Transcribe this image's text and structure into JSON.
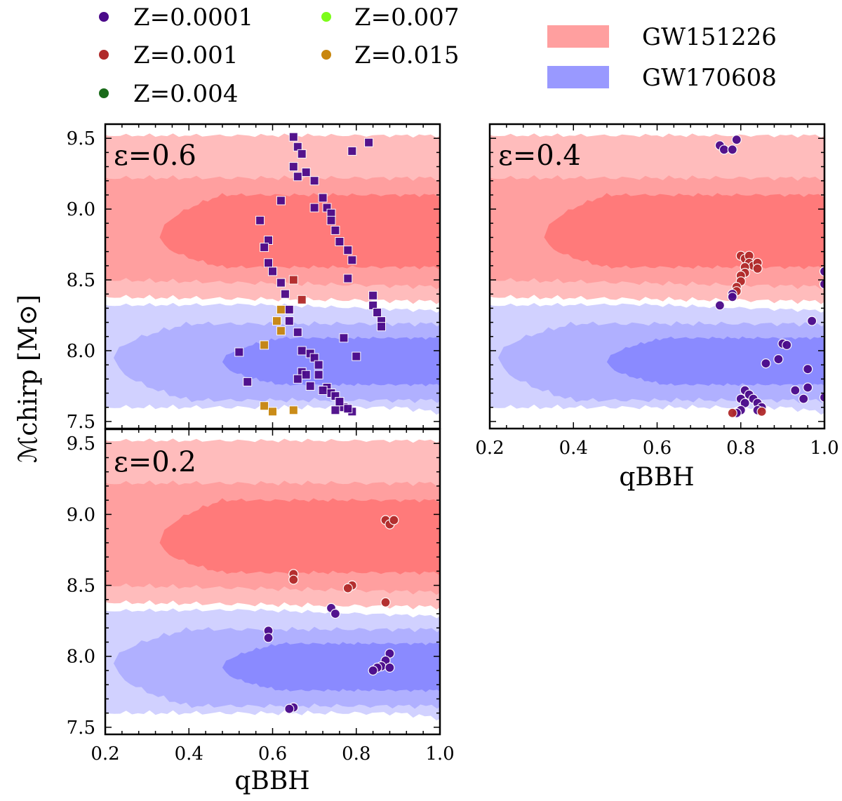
{
  "colors": {
    "Z=0.0001": "#4b0a8a",
    "Z=0.001": "#b02a2a",
    "Z=0.004": "#1a6b1a",
    "Z=0.007": "#7cfc1a",
    "Z=0.015": "#c8860d",
    "gw151226_outer": "#ffbcbc",
    "gw151226_mid": "#ff9f9f",
    "gw151226_inner": "#ff7a7a",
    "gw170608_outer": "#c4c4ff",
    "gw170608_mid": "#a7a7ff",
    "gw170608_inner": "#7f7fff"
  },
  "legend": {
    "metallicities": [
      {
        "label": "Z=0.0001",
        "color": "#4b0a8a"
      },
      {
        "label": "Z=0.001",
        "color": "#b02a2a"
      },
      {
        "label": "Z=0.004",
        "color": "#1a6b1a"
      },
      {
        "label": "Z=0.007",
        "color": "#7cfc1a"
      },
      {
        "label": "Z=0.015",
        "color": "#c8860d"
      }
    ],
    "events": [
      {
        "label": "GW151226",
        "color": "#ff9f9f"
      },
      {
        "label": "GW170608",
        "color": "#9999ff"
      }
    ]
  },
  "axes": {
    "ylabel": "ℳchirp [M⊙]",
    "xlabel": "qBBH"
  },
  "chart_data": [
    {
      "type": "scatter",
      "panel_label": "ε=0.6",
      "marker": "square",
      "xlim": [
        0.2,
        1.0
      ],
      "ylim": [
        7.45,
        9.6
      ],
      "xticks": [
        0.2,
        0.4,
        0.6,
        0.8,
        1.0
      ],
      "yticks": [
        7.5,
        8.0,
        8.5,
        9.0,
        9.5
      ],
      "points": [
        [
          0.65,
          9.51,
          "Z=0.0001"
        ],
        [
          0.66,
          9.44,
          "Z=0.0001"
        ],
        [
          0.67,
          9.39,
          "Z=0.0001"
        ],
        [
          0.65,
          9.3,
          "Z=0.0001"
        ],
        [
          0.68,
          9.26,
          "Z=0.0001"
        ],
        [
          0.66,
          9.23,
          "Z=0.0001"
        ],
        [
          0.7,
          9.2,
          "Z=0.0001"
        ],
        [
          0.72,
          9.08,
          "Z=0.0001"
        ],
        [
          0.73,
          9.01,
          "Z=0.0001"
        ],
        [
          0.74,
          8.97,
          "Z=0.0001"
        ],
        [
          0.74,
          8.92,
          "Z=0.0001"
        ],
        [
          0.75,
          8.85,
          "Z=0.0001"
        ],
        [
          0.76,
          8.77,
          "Z=0.0001"
        ],
        [
          0.78,
          8.71,
          "Z=0.0001"
        ],
        [
          0.79,
          8.64,
          "Z=0.0001"
        ],
        [
          0.78,
          8.51,
          "Z=0.0001"
        ],
        [
          0.79,
          9.41,
          "Z=0.0001"
        ],
        [
          0.83,
          9.47,
          "Z=0.0001"
        ],
        [
          0.62,
          9.06,
          "Z=0.0001"
        ],
        [
          0.7,
          9.01,
          "Z=0.0001"
        ],
        [
          0.57,
          8.92,
          "Z=0.0001"
        ],
        [
          0.59,
          8.78,
          "Z=0.0001"
        ],
        [
          0.58,
          8.73,
          "Z=0.0001"
        ],
        [
          0.59,
          8.62,
          "Z=0.0001"
        ],
        [
          0.6,
          8.56,
          "Z=0.0001"
        ],
        [
          0.62,
          8.48,
          "Z=0.0001"
        ],
        [
          0.63,
          8.4,
          "Z=0.0001"
        ],
        [
          0.64,
          8.29,
          "Z=0.0001"
        ],
        [
          0.64,
          8.21,
          "Z=0.0001"
        ],
        [
          0.66,
          8.13,
          "Z=0.0001"
        ],
        [
          0.84,
          8.39,
          "Z=0.0001"
        ],
        [
          0.84,
          8.32,
          "Z=0.0001"
        ],
        [
          0.85,
          8.27,
          "Z=0.0001"
        ],
        [
          0.86,
          8.21,
          "Z=0.0001"
        ],
        [
          0.86,
          8.17,
          "Z=0.0001"
        ],
        [
          0.65,
          8.5,
          "Z=0.001"
        ],
        [
          0.67,
          8.36,
          "Z=0.001"
        ],
        [
          0.62,
          8.29,
          "Z=0.015"
        ],
        [
          0.61,
          8.21,
          "Z=0.015"
        ],
        [
          0.62,
          8.14,
          "Z=0.015"
        ],
        [
          0.58,
          8.04,
          "Z=0.015"
        ],
        [
          0.58,
          7.61,
          "Z=0.015"
        ],
        [
          0.6,
          7.57,
          "Z=0.015"
        ],
        [
          0.65,
          7.58,
          "Z=0.015"
        ],
        [
          0.52,
          7.99,
          "Z=0.0001"
        ],
        [
          0.54,
          7.78,
          "Z=0.0001"
        ],
        [
          0.67,
          8.0,
          "Z=0.0001"
        ],
        [
          0.69,
          7.98,
          "Z=0.0001"
        ],
        [
          0.7,
          7.95,
          "Z=0.0001"
        ],
        [
          0.71,
          7.9,
          "Z=0.0001"
        ],
        [
          0.67,
          7.85,
          "Z=0.0001"
        ],
        [
          0.68,
          7.83,
          "Z=0.0001"
        ],
        [
          0.71,
          7.83,
          "Z=0.0001"
        ],
        [
          0.66,
          7.8,
          "Z=0.0001"
        ],
        [
          0.69,
          7.75,
          "Z=0.0001"
        ],
        [
          0.73,
          7.74,
          "Z=0.0001"
        ],
        [
          0.72,
          7.72,
          "Z=0.0001"
        ],
        [
          0.74,
          7.7,
          "Z=0.0001"
        ],
        [
          0.75,
          7.68,
          "Z=0.0001"
        ],
        [
          0.76,
          7.64,
          "Z=0.0001"
        ],
        [
          0.77,
          7.6,
          "Z=0.0001"
        ],
        [
          0.75,
          7.58,
          "Z=0.0001"
        ],
        [
          0.79,
          7.57,
          "Z=0.0001"
        ],
        [
          0.78,
          7.59,
          "Z=0.0001"
        ],
        [
          0.77,
          8.09,
          "Z=0.0001"
        ],
        [
          0.8,
          7.96,
          "Z=0.0001"
        ],
        [
          0.76,
          7.64,
          "Z=0.0001"
        ]
      ]
    },
    {
      "type": "scatter",
      "panel_label": "ε=0.4",
      "marker": "circle",
      "xlim": [
        0.2,
        1.0
      ],
      "ylim": [
        7.45,
        9.6
      ],
      "xticks": [
        0.2,
        0.4,
        0.6,
        0.8,
        1.0
      ],
      "yticks": [
        7.5,
        8.0,
        8.5,
        9.0,
        9.5
      ],
      "points": [
        [
          0.75,
          9.45,
          "Z=0.0001"
        ],
        [
          0.76,
          9.42,
          "Z=0.0001"
        ],
        [
          0.78,
          9.42,
          "Z=0.0001"
        ],
        [
          0.79,
          9.49,
          "Z=0.0001"
        ],
        [
          0.8,
          8.67,
          "Z=0.001"
        ],
        [
          0.81,
          8.65,
          "Z=0.001"
        ],
        [
          0.82,
          8.67,
          "Z=0.001"
        ],
        [
          0.82,
          8.62,
          "Z=0.001"
        ],
        [
          0.83,
          8.6,
          "Z=0.001"
        ],
        [
          0.84,
          8.62,
          "Z=0.001"
        ],
        [
          0.84,
          8.58,
          "Z=0.001"
        ],
        [
          0.81,
          8.59,
          "Z=0.001"
        ],
        [
          0.81,
          8.55,
          "Z=0.001"
        ],
        [
          0.8,
          8.53,
          "Z=0.001"
        ],
        [
          0.8,
          8.49,
          "Z=0.001"
        ],
        [
          0.79,
          8.45,
          "Z=0.001"
        ],
        [
          0.79,
          8.42,
          "Z=0.001"
        ],
        [
          0.78,
          8.4,
          "Z=0.0001"
        ],
        [
          0.78,
          8.38,
          "Z=0.0001"
        ],
        [
          0.75,
          8.32,
          "Z=0.0001"
        ],
        [
          0.97,
          8.21,
          "Z=0.0001"
        ],
        [
          1.0,
          8.56,
          "Z=0.0001"
        ],
        [
          1.0,
          8.47,
          "Z=0.0001"
        ],
        [
          0.9,
          8.05,
          "Z=0.0001"
        ],
        [
          0.91,
          8.04,
          "Z=0.0001"
        ],
        [
          0.89,
          7.94,
          "Z=0.0001"
        ],
        [
          0.86,
          7.91,
          "Z=0.0001"
        ],
        [
          0.96,
          7.87,
          "Z=0.0001"
        ],
        [
          0.93,
          7.72,
          "Z=0.0001"
        ],
        [
          0.96,
          7.74,
          "Z=0.0001"
        ],
        [
          0.95,
          7.66,
          "Z=0.0001"
        ],
        [
          1.0,
          7.67,
          "Z=0.0001"
        ],
        [
          0.81,
          7.72,
          "Z=0.0001"
        ],
        [
          0.82,
          7.69,
          "Z=0.0001"
        ],
        [
          0.8,
          7.66,
          "Z=0.0001"
        ],
        [
          0.81,
          7.63,
          "Z=0.0001"
        ],
        [
          0.83,
          7.66,
          "Z=0.0001"
        ],
        [
          0.84,
          7.63,
          "Z=0.0001"
        ],
        [
          0.85,
          7.6,
          "Z=0.0001"
        ],
        [
          0.84,
          7.58,
          "Z=0.0001"
        ],
        [
          0.8,
          7.58,
          "Z=0.0001"
        ],
        [
          0.79,
          7.56,
          "Z=0.0001"
        ],
        [
          0.85,
          7.57,
          "Z=0.001"
        ],
        [
          0.78,
          7.56,
          "Z=0.001"
        ]
      ]
    },
    {
      "type": "scatter",
      "panel_label": "ε=0.2",
      "marker": "circle",
      "xlim": [
        0.2,
        1.0
      ],
      "ylim": [
        7.45,
        9.6
      ],
      "xticks": [
        0.2,
        0.4,
        0.6,
        0.8,
        1.0
      ],
      "yticks": [
        7.5,
        8.0,
        8.5,
        9.0,
        9.5
      ],
      "points": [
        [
          0.87,
          8.96,
          "Z=0.001"
        ],
        [
          0.88,
          8.93,
          "Z=0.001"
        ],
        [
          0.89,
          8.96,
          "Z=0.001"
        ],
        [
          0.65,
          8.58,
          "Z=0.001"
        ],
        [
          0.65,
          8.54,
          "Z=0.001"
        ],
        [
          0.79,
          8.5,
          "Z=0.001"
        ],
        [
          0.78,
          8.48,
          "Z=0.001"
        ],
        [
          0.87,
          8.38,
          "Z=0.001"
        ],
        [
          0.74,
          8.34,
          "Z=0.0001"
        ],
        [
          0.75,
          8.3,
          "Z=0.0001"
        ],
        [
          0.59,
          8.18,
          "Z=0.0001"
        ],
        [
          0.59,
          8.13,
          "Z=0.0001"
        ],
        [
          0.88,
          8.02,
          "Z=0.0001"
        ],
        [
          0.87,
          7.97,
          "Z=0.0001"
        ],
        [
          0.86,
          7.93,
          "Z=0.0001"
        ],
        [
          0.88,
          7.92,
          "Z=0.0001"
        ],
        [
          0.85,
          7.92,
          "Z=0.0001"
        ],
        [
          0.84,
          7.9,
          "Z=0.0001"
        ],
        [
          0.65,
          7.64,
          "Z=0.0001"
        ],
        [
          0.64,
          7.63,
          "Z=0.0001"
        ]
      ]
    }
  ]
}
